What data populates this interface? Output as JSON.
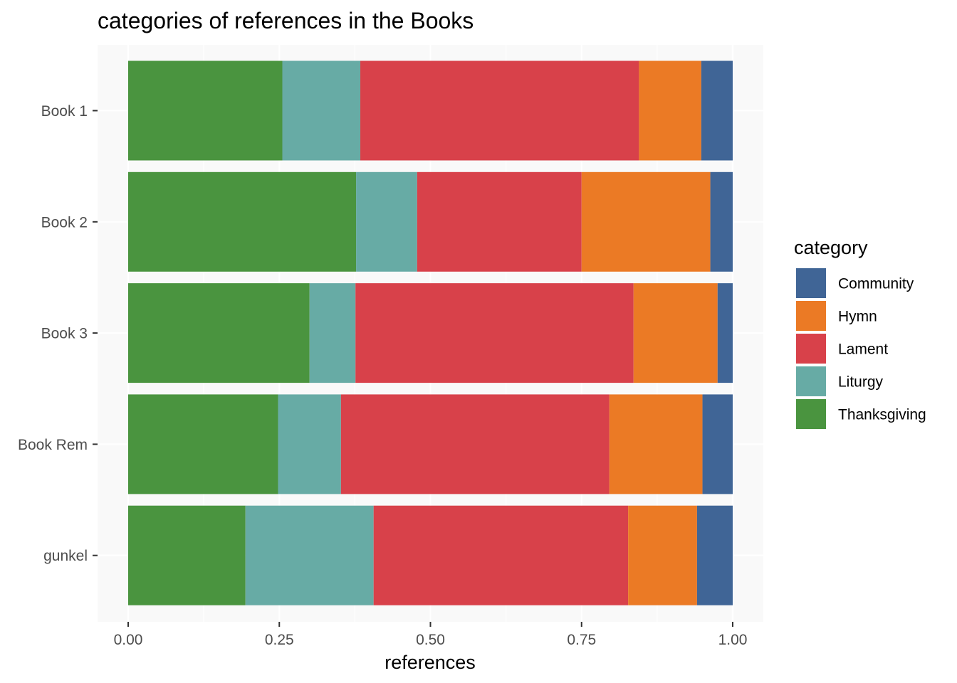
{
  "chart_data": {
    "type": "bar",
    "orientation": "horizontal",
    "stacked": "proportional",
    "title": "categories of references in the Books",
    "xlabel": "references",
    "ylabel": "",
    "xlim": [
      0,
      1
    ],
    "x_ticks": [
      "0.00",
      "0.25",
      "0.50",
      "0.75",
      "1.00"
    ],
    "x_tick_values": [
      0,
      0.25,
      0.5,
      0.75,
      1
    ],
    "categories": [
      "Book 1",
      "Book 2",
      "Book 3",
      "Book Rem",
      "gunkel"
    ],
    "series": [
      {
        "name": "Thanksgiving",
        "color": "#4a943f",
        "values": [
          0.255,
          0.377,
          0.3,
          0.248,
          0.194
        ]
      },
      {
        "name": "Liturgy",
        "color": "#67aba5",
        "values": [
          0.129,
          0.101,
          0.076,
          0.104,
          0.212
        ]
      },
      {
        "name": "Lament",
        "color": "#d8414a",
        "values": [
          0.461,
          0.272,
          0.46,
          0.444,
          0.421
        ]
      },
      {
        "name": "Hymn",
        "color": "#eb7a25",
        "values": [
          0.103,
          0.213,
          0.139,
          0.154,
          0.114
        ]
      },
      {
        "name": "Community",
        "color": "#406596",
        "values": [
          0.052,
          0.037,
          0.025,
          0.05,
          0.059
        ]
      }
    ],
    "legend": {
      "title": "category",
      "position": "right",
      "order": [
        "Community",
        "Hymn",
        "Lament",
        "Liturgy",
        "Thanksgiving"
      ]
    },
    "grid": true,
    "panel_background": "#f9f9f9",
    "gridline_color": "#ffffff"
  }
}
